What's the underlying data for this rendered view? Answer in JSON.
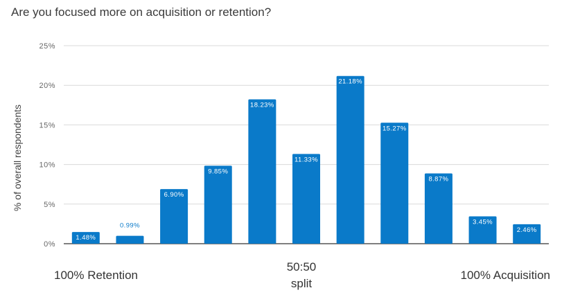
{
  "chart_data": {
    "type": "bar",
    "title": "Are you focused more on acquisition or retention?",
    "ylabel": "% of overall respondents",
    "xlabel": "",
    "ylim": [
      0,
      25
    ],
    "yticks": [
      "0%",
      "5%",
      "10%",
      "15%",
      "20%",
      "25%"
    ],
    "values": [
      1.48,
      0.99,
      6.9,
      9.85,
      18.23,
      11.33,
      21.18,
      15.27,
      8.87,
      3.45,
      2.46
    ],
    "data_labels": [
      "1.48%",
      "0.99%",
      "6.90%",
      "9.85%",
      "18.23%",
      "11.33%",
      "21.18%",
      "15.27%",
      "8.87%",
      "3.45%",
      "2.46%"
    ],
    "x_annotations": {
      "left": "100% Retention",
      "middle_line1": "50:50",
      "middle_line2": "split",
      "right": "100% Acquisition"
    },
    "grid": true,
    "legend": "none"
  },
  "colors": {
    "bar": "#0a7ac9",
    "grid": "#d9d9d9",
    "axis": "#333333",
    "tick_text": "#666666",
    "bar_label_inside": "#ffffff",
    "bar_label_outside": "#0a7ac9"
  }
}
